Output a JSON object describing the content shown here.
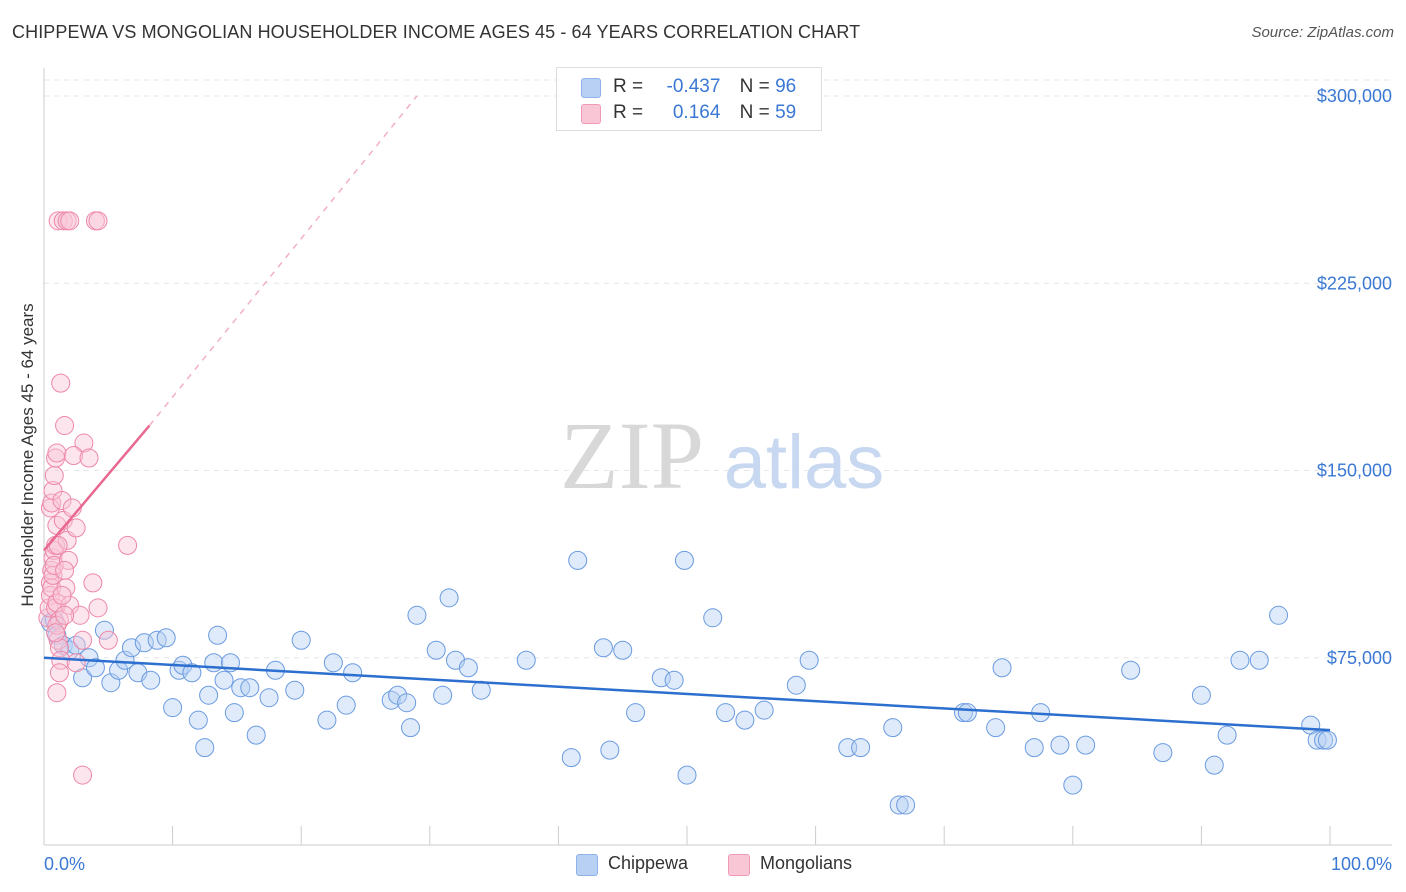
{
  "title": "CHIPPEWA VS MONGOLIAN HOUSEHOLDER INCOME AGES 45 - 64 YEARS CORRELATION CHART",
  "source": "Source: ZipAtlas.com",
  "watermark": {
    "zip": "ZIP",
    "atlas": "atlas"
  },
  "legend_top": [
    {
      "swatch_color": "#b8d0f4",
      "r_label": "R =",
      "r_value": "-0.437",
      "n_label": "N =",
      "n_value": "96"
    },
    {
      "swatch_color": "#f9c6d6",
      "r_label": "R =",
      "r_value": "0.164",
      "n_label": "N =",
      "n_value": "59"
    }
  ],
  "legend_bottom": [
    {
      "label": "Chippewa",
      "color": "#b8d0f4"
    },
    {
      "label": "Mongolians",
      "color": "#f9c6d6"
    }
  ],
  "chart_data": {
    "type": "scatter",
    "title": "CHIPPEWA VS MONGOLIAN HOUSEHOLDER INCOME AGES 45 - 64 YEARS CORRELATION CHART",
    "xlabel": "",
    "ylabel": "Householder Income Ages 45 - 64 years",
    "xlim": [
      0,
      100
    ],
    "ylim": [
      0,
      310000
    ],
    "x_tick_labels": [
      "0.0%",
      "100.0%"
    ],
    "y_ticks": [
      75000,
      150000,
      225000,
      300000
    ],
    "y_tick_labels": [
      "$75,000",
      "$150,000",
      "$225,000",
      "$300,000"
    ],
    "grid": true,
    "legend_position": "top-center",
    "colors": {
      "chippewa": "#6a9be0",
      "mongolians": "#ee88a8",
      "chippewa_line": "#2d6fcf",
      "mongolians_line": "#e86890"
    },
    "series": [
      {
        "name": "Chippewa",
        "points": [
          [
            0.5,
            89000
          ],
          [
            0.8,
            90000
          ],
          [
            1.0,
            84000
          ],
          [
            1.5,
            80000
          ],
          [
            2.0,
            78000
          ],
          [
            2.5,
            80000
          ],
          [
            3.0,
            67000
          ],
          [
            3.5,
            75000
          ],
          [
            4.0,
            71000
          ],
          [
            4.7,
            86000
          ],
          [
            5.2,
            65000
          ],
          [
            5.8,
            70000
          ],
          [
            6.3,
            74000
          ],
          [
            6.8,
            79000
          ],
          [
            7.3,
            69000
          ],
          [
            7.8,
            81000
          ],
          [
            8.3,
            66000
          ],
          [
            8.8,
            82000
          ],
          [
            9.5,
            83000
          ],
          [
            10.0,
            55000
          ],
          [
            10.5,
            70000
          ],
          [
            10.8,
            72000
          ],
          [
            11.5,
            69000
          ],
          [
            12.0,
            50000
          ],
          [
            12.5,
            39000
          ],
          [
            12.8,
            60000
          ],
          [
            13.2,
            73000
          ],
          [
            13.5,
            84000
          ],
          [
            14.0,
            66000
          ],
          [
            14.5,
            73000
          ],
          [
            14.8,
            53000
          ],
          [
            15.3,
            63000
          ],
          [
            16.0,
            63000
          ],
          [
            16.5,
            44000
          ],
          [
            17.5,
            59000
          ],
          [
            18.0,
            70000
          ],
          [
            19.5,
            62000
          ],
          [
            20.0,
            82000
          ],
          [
            22.0,
            50000
          ],
          [
            22.5,
            73000
          ],
          [
            23.5,
            56000
          ],
          [
            24.0,
            69000
          ],
          [
            27.0,
            58000
          ],
          [
            27.5,
            60000
          ],
          [
            28.2,
            57000
          ],
          [
            28.5,
            47000
          ],
          [
            29.0,
            92000
          ],
          [
            30.5,
            78000
          ],
          [
            31.0,
            60000
          ],
          [
            31.5,
            99000
          ],
          [
            32.0,
            74000
          ],
          [
            33.0,
            71000
          ],
          [
            34.0,
            62000
          ],
          [
            37.5,
            74000
          ],
          [
            41.0,
            35000
          ],
          [
            41.5,
            114000
          ],
          [
            43.5,
            79000
          ],
          [
            44.0,
            38000
          ],
          [
            45.0,
            78000
          ],
          [
            46.0,
            53000
          ],
          [
            48.0,
            67000
          ],
          [
            49.0,
            66000
          ],
          [
            49.8,
            114000
          ],
          [
            50.0,
            28000
          ],
          [
            52.0,
            91000
          ],
          [
            53.0,
            53000
          ],
          [
            54.5,
            50000
          ],
          [
            56.0,
            54000
          ],
          [
            58.5,
            64000
          ],
          [
            59.5,
            74000
          ],
          [
            62.5,
            39000
          ],
          [
            63.5,
            39000
          ],
          [
            66.0,
            47000
          ],
          [
            66.5,
            16000
          ],
          [
            67.0,
            16000
          ],
          [
            71.5,
            53000
          ],
          [
            71.8,
            53000
          ],
          [
            74.0,
            47000
          ],
          [
            74.5,
            71000
          ],
          [
            77.0,
            39000
          ],
          [
            77.5,
            53000
          ],
          [
            79.0,
            40000
          ],
          [
            80.0,
            24000
          ],
          [
            81.0,
            40000
          ],
          [
            84.5,
            70000
          ],
          [
            87.0,
            37000
          ],
          [
            90.0,
            60000
          ],
          [
            91.0,
            32000
          ],
          [
            92.0,
            44000
          ],
          [
            93.0,
            74000
          ],
          [
            94.5,
            74000
          ],
          [
            96.0,
            92000
          ],
          [
            98.5,
            48000
          ],
          [
            99.0,
            42000
          ],
          [
            99.5,
            42000
          ],
          [
            99.8,
            42000
          ]
        ]
      },
      {
        "name": "Mongolians",
        "points": [
          [
            0.3,
            91000
          ],
          [
            0.4,
            95000
          ],
          [
            0.5,
            105000
          ],
          [
            0.6,
            110000
          ],
          [
            0.7,
            115000
          ],
          [
            0.8,
            118000
          ],
          [
            0.9,
            120000
          ],
          [
            1.0,
            128000
          ],
          [
            0.5,
            135000
          ],
          [
            0.6,
            137000
          ],
          [
            0.7,
            142000
          ],
          [
            0.8,
            148000
          ],
          [
            0.9,
            155000
          ],
          [
            1.0,
            157000
          ],
          [
            0.5,
            100000
          ],
          [
            0.6,
            103000
          ],
          [
            0.7,
            108000
          ],
          [
            0.8,
            112000
          ],
          [
            0.9,
            95000
          ],
          [
            1.0,
            97000
          ],
          [
            1.1,
            82000
          ],
          [
            1.2,
            79000
          ],
          [
            1.3,
            74000
          ],
          [
            1.2,
            69000
          ],
          [
            1.0,
            61000
          ],
          [
            1.1,
            250000
          ],
          [
            1.5,
            250000
          ],
          [
            1.8,
            250000
          ],
          [
            2.0,
            250000
          ],
          [
            4.0,
            250000
          ],
          [
            4.2,
            250000
          ],
          [
            1.3,
            185000
          ],
          [
            1.6,
            168000
          ],
          [
            3.1,
            161000
          ],
          [
            2.3,
            156000
          ],
          [
            3.5,
            155000
          ],
          [
            1.4,
            138000
          ],
          [
            1.5,
            130000
          ],
          [
            1.8,
            122000
          ],
          [
            1.9,
            114000
          ],
          [
            1.6,
            110000
          ],
          [
            1.7,
            103000
          ],
          [
            2.0,
            96000
          ],
          [
            2.2,
            135000
          ],
          [
            2.5,
            127000
          ],
          [
            3.0,
            82000
          ],
          [
            3.8,
            105000
          ],
          [
            4.2,
            95000
          ],
          [
            1.2,
            90000
          ],
          [
            1.0,
            88000
          ],
          [
            2.8,
            92000
          ],
          [
            5.0,
            82000
          ],
          [
            6.5,
            120000
          ],
          [
            2.5,
            73000
          ],
          [
            3.0,
            28000
          ],
          [
            1.4,
            100000
          ],
          [
            1.6,
            92000
          ],
          [
            0.9,
            85000
          ],
          [
            1.1,
            120000
          ]
        ]
      }
    ],
    "trend_lines": [
      {
        "series": "Chippewa",
        "x": [
          0,
          100
        ],
        "y": [
          75000,
          46000
        ]
      },
      {
        "series": "Mongolians",
        "x": [
          0,
          8.2
        ],
        "y": [
          118000,
          168000
        ],
        "extended_dashed_to": [
          29,
          300000
        ]
      }
    ]
  }
}
